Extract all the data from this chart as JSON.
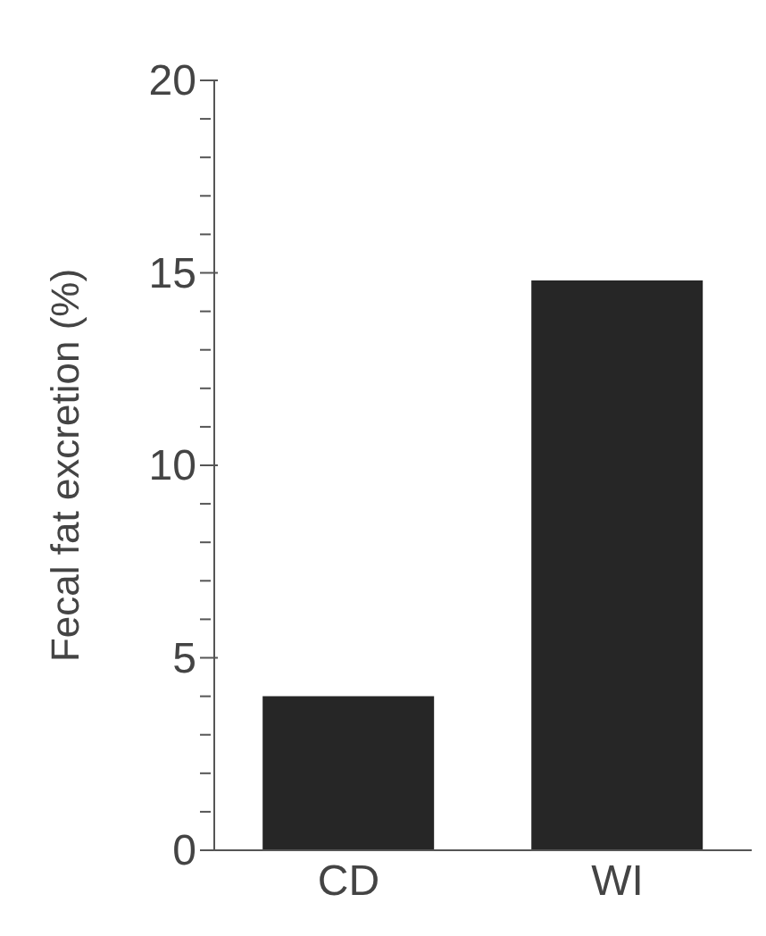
{
  "chart_data": {
    "type": "bar",
    "ylabel": "Fecal fat excretion (%)",
    "categories": [
      "CD",
      "WI"
    ],
    "values": [
      4.0,
      14.8
    ],
    "color": "#262626",
    "ylim": [
      0,
      20
    ],
    "yticks": [
      0,
      {
        "value": 1,
        "label": null
      },
      {
        "value": 2,
        "label": null
      },
      {
        "value": 3,
        "label": null
      },
      {
        "value": 4,
        "label": null
      },
      5,
      {
        "value": 6,
        "label": null
      },
      {
        "value": 7,
        "label": null
      },
      {
        "value": 8,
        "label": null
      },
      {
        "value": 9,
        "label": null
      },
      10,
      {
        "value": 11,
        "label": null
      },
      {
        "value": 12,
        "label": null
      },
      {
        "value": 13,
        "label": null
      },
      {
        "value": 14,
        "label": null
      },
      15,
      {
        "value": 16,
        "label": null
      },
      {
        "value": 17,
        "label": null
      },
      {
        "value": 18,
        "label": null
      },
      {
        "value": 19,
        "label": null
      },
      20
    ],
    "grid": false
  }
}
